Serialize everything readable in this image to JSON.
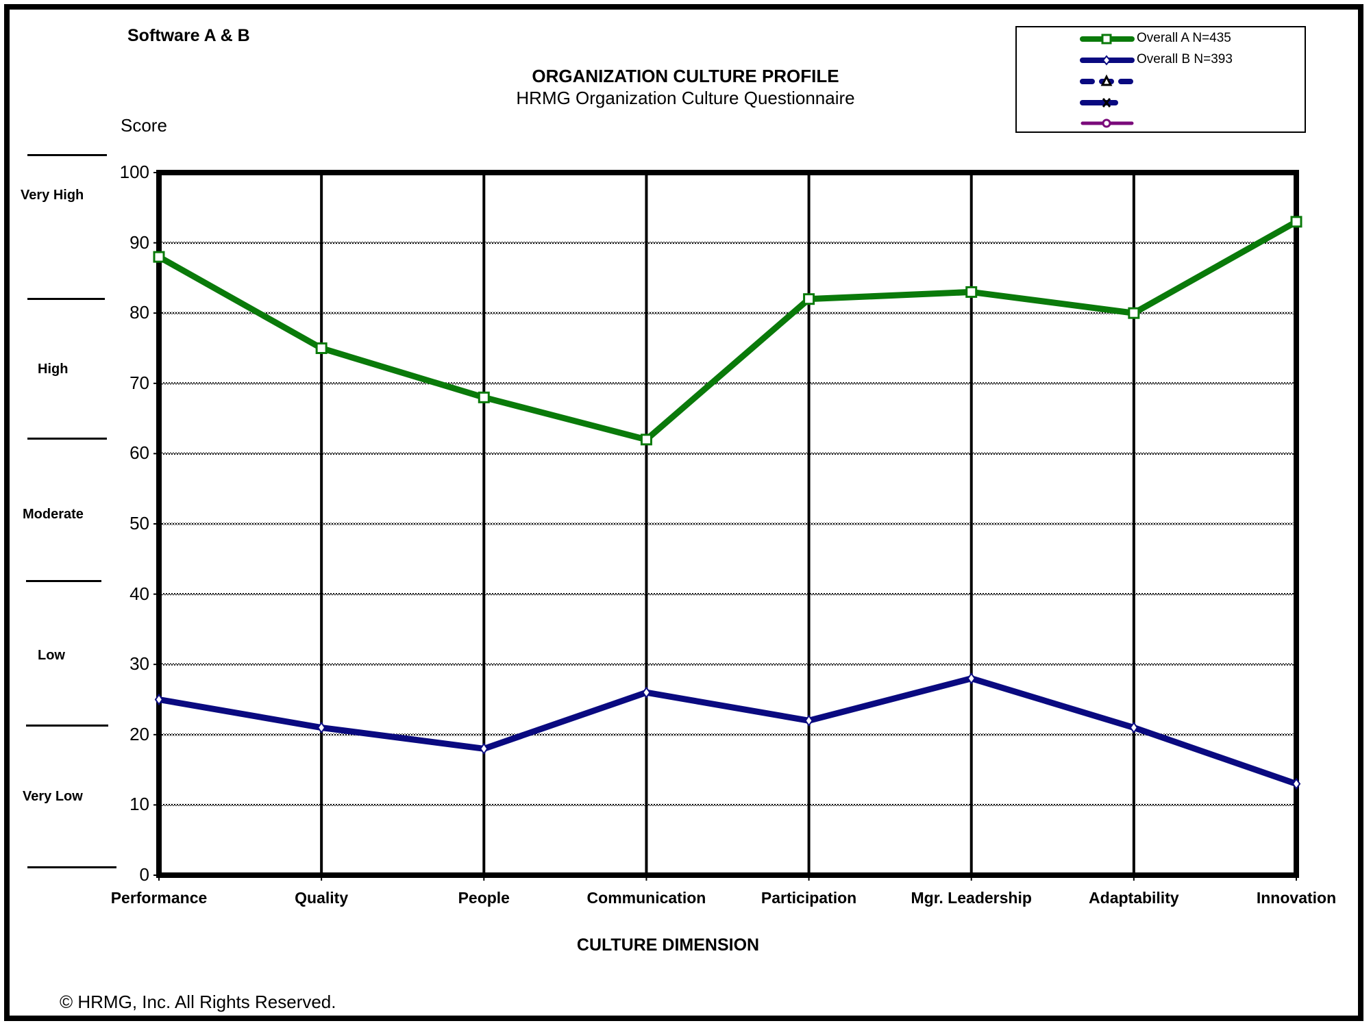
{
  "header": {
    "corner_title": "Software A & B",
    "title": "ORGANIZATION CULTURE PROFILE",
    "subtitle": "HRMG Organization Culture Questionnaire",
    "y_axis_label": "Score"
  },
  "legend": {
    "items": [
      {
        "label": "Overall A  N=435",
        "color": "#0a7a0a",
        "marker": "square",
        "dash": "solid"
      },
      {
        "label": "Overall B  N=393",
        "color": "#0a0a80",
        "marker": "diamond",
        "dash": "solid"
      },
      {
        "label": "",
        "color": "#0a0a80",
        "marker": "triangle",
        "dash": "dashed"
      },
      {
        "label": "",
        "color": "#0a0a80",
        "marker": "x",
        "dash": "solid"
      },
      {
        "label": "",
        "color": "#7a0a7a",
        "marker": "circle",
        "dash": "solid"
      }
    ]
  },
  "bands": {
    "labels": [
      "Very High",
      "High",
      "Moderate",
      "Low",
      "Very Low"
    ]
  },
  "footer": {
    "x_axis_title": "CULTURE DIMENSION",
    "copyright": "© HRMG, Inc.   All Rights Reserved."
  },
  "chart_data": {
    "type": "line",
    "title": "ORGANIZATION CULTURE PROFILE",
    "subtitle": "HRMG Organization Culture Questionnaire",
    "xlabel": "CULTURE DIMENSION",
    "ylabel": "Score",
    "ylim": [
      0,
      100
    ],
    "yticks": [
      0,
      10,
      20,
      30,
      40,
      50,
      60,
      70,
      80,
      90,
      100
    ],
    "grid": true,
    "legend_position": "top-right",
    "categories": [
      "Performance",
      "Quality",
      "People",
      "Communication",
      "Participation",
      "Mgr. Leadership",
      "Adaptability",
      "Innovation"
    ],
    "series": [
      {
        "name": "Overall A  N=435",
        "color": "#0a7a0a",
        "marker": "square",
        "values": [
          88,
          75,
          68,
          62,
          82,
          83,
          80,
          93
        ]
      },
      {
        "name": "Overall B  N=393",
        "color": "#0a0a80",
        "marker": "diamond",
        "values": [
          25,
          21,
          18,
          26,
          22,
          28,
          21,
          13
        ]
      }
    ],
    "score_bands": [
      "Very High",
      "High",
      "Moderate",
      "Low",
      "Very Low"
    ]
  }
}
